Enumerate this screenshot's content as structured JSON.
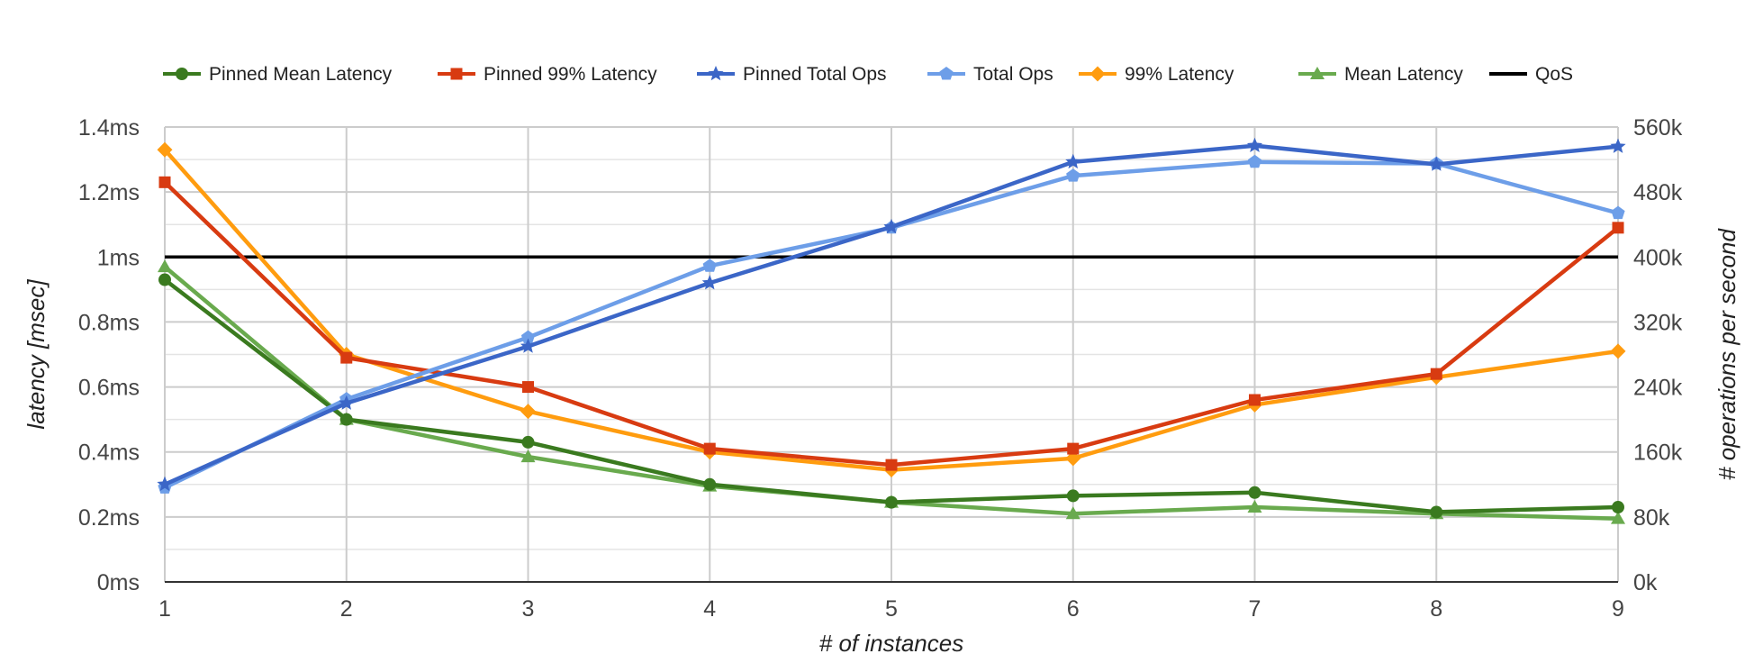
{
  "chart_data": {
    "type": "line",
    "title": "",
    "xlabel": "# of instances",
    "ylabel": "latency [msec]",
    "y2label": "# operations per second",
    "x": [
      1,
      2,
      3,
      4,
      5,
      6,
      7,
      8,
      9
    ],
    "x_ticks": [
      "1",
      "2",
      "3",
      "4",
      "5",
      "6",
      "7",
      "8",
      "9"
    ],
    "ylim": [
      0,
      1.4
    ],
    "y_ticks": [
      "0ms",
      "0.2ms",
      "0.4ms",
      "0.6ms",
      "0.8ms",
      "1ms",
      "1.2ms",
      "1.4ms"
    ],
    "y2lim": [
      0,
      560000
    ],
    "y2_ticks": [
      "0k",
      "80k",
      "160k",
      "240k",
      "320k",
      "400k",
      "480k",
      "560k"
    ],
    "grid": true,
    "legend_position": "top",
    "series": [
      {
        "name": "Pinned Mean Latency",
        "axis": "left",
        "color": "#3a7a1f",
        "marker": "circle",
        "values": [
          0.93,
          0.5,
          0.43,
          0.3,
          0.245,
          0.265,
          0.275,
          0.215,
          0.23
        ]
      },
      {
        "name": "Pinned 99% Latency",
        "axis": "left",
        "color": "#d83b11",
        "marker": "square",
        "values": [
          1.23,
          0.69,
          0.6,
          0.41,
          0.36,
          0.41,
          0.56,
          0.64,
          1.09
        ]
      },
      {
        "name": "Pinned Total Ops",
        "axis": "right",
        "color": "#3b66c7",
        "marker": "star",
        "values": [
          120000,
          220000,
          290000,
          368000,
          437000,
          517000,
          537000,
          514000,
          536000
        ]
      },
      {
        "name": "Total Ops",
        "axis": "right",
        "color": "#6d9ee8",
        "marker": "pentagon",
        "values": [
          116000,
          225000,
          301000,
          389000,
          436000,
          500000,
          517000,
          515000,
          454000
        ]
      },
      {
        "name": "99% Latency",
        "axis": "left",
        "color": "#ff9c0f",
        "marker": "diamond",
        "values": [
          1.33,
          0.7,
          0.525,
          0.4,
          0.345,
          0.38,
          0.545,
          0.63,
          0.71
        ]
      },
      {
        "name": "Mean Latency",
        "axis": "left",
        "color": "#69aa4e",
        "marker": "triangle",
        "values": [
          0.97,
          0.5,
          0.385,
          0.295,
          0.245,
          0.21,
          0.23,
          0.21,
          0.195
        ]
      },
      {
        "name": "QoS",
        "axis": "left",
        "color": "#000000",
        "marker": "none",
        "values": [
          1.0,
          1.0,
          1.0,
          1.0,
          1.0,
          1.0,
          1.0,
          1.0,
          1.0
        ]
      }
    ]
  }
}
